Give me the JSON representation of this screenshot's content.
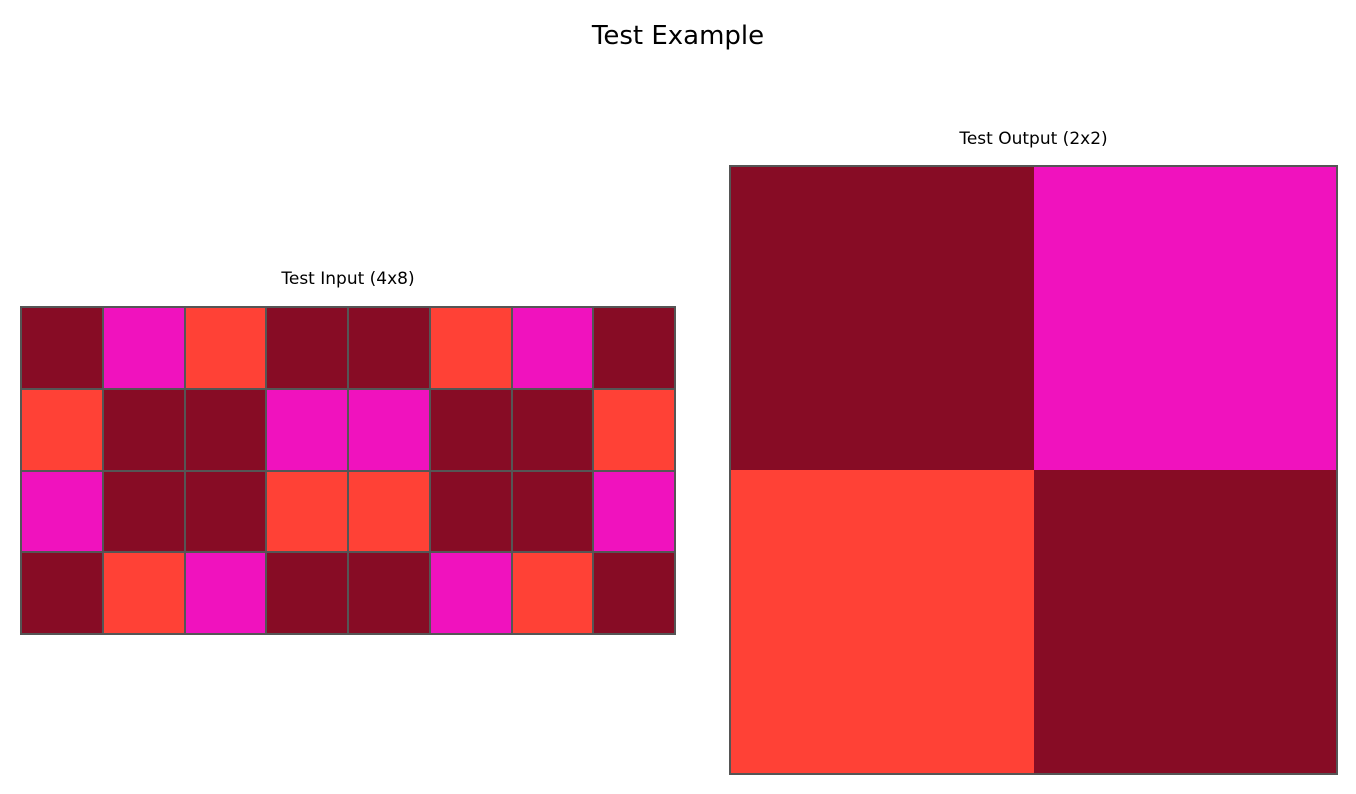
{
  "title": "Test Example",
  "palette": {
    "dark_red": "#870C25",
    "magenta": "#F012BE",
    "red": "#FF4136",
    "grid_line": "#555555"
  },
  "input": {
    "title": "Test Input (4x8)",
    "rows": 4,
    "cols": 8,
    "cells": [
      [
        "dark_red",
        "magenta",
        "red",
        "dark_red",
        "dark_red",
        "red",
        "magenta",
        "dark_red"
      ],
      [
        "red",
        "dark_red",
        "dark_red",
        "magenta",
        "magenta",
        "dark_red",
        "dark_red",
        "red"
      ],
      [
        "magenta",
        "dark_red",
        "dark_red",
        "red",
        "red",
        "dark_red",
        "dark_red",
        "magenta"
      ],
      [
        "dark_red",
        "red",
        "magenta",
        "dark_red",
        "dark_red",
        "magenta",
        "red",
        "dark_red"
      ]
    ]
  },
  "output": {
    "title": "Test Output (2x2)",
    "rows": 2,
    "cols": 2,
    "cells": [
      [
        "dark_red",
        "magenta"
      ],
      [
        "red",
        "dark_red"
      ]
    ]
  }
}
